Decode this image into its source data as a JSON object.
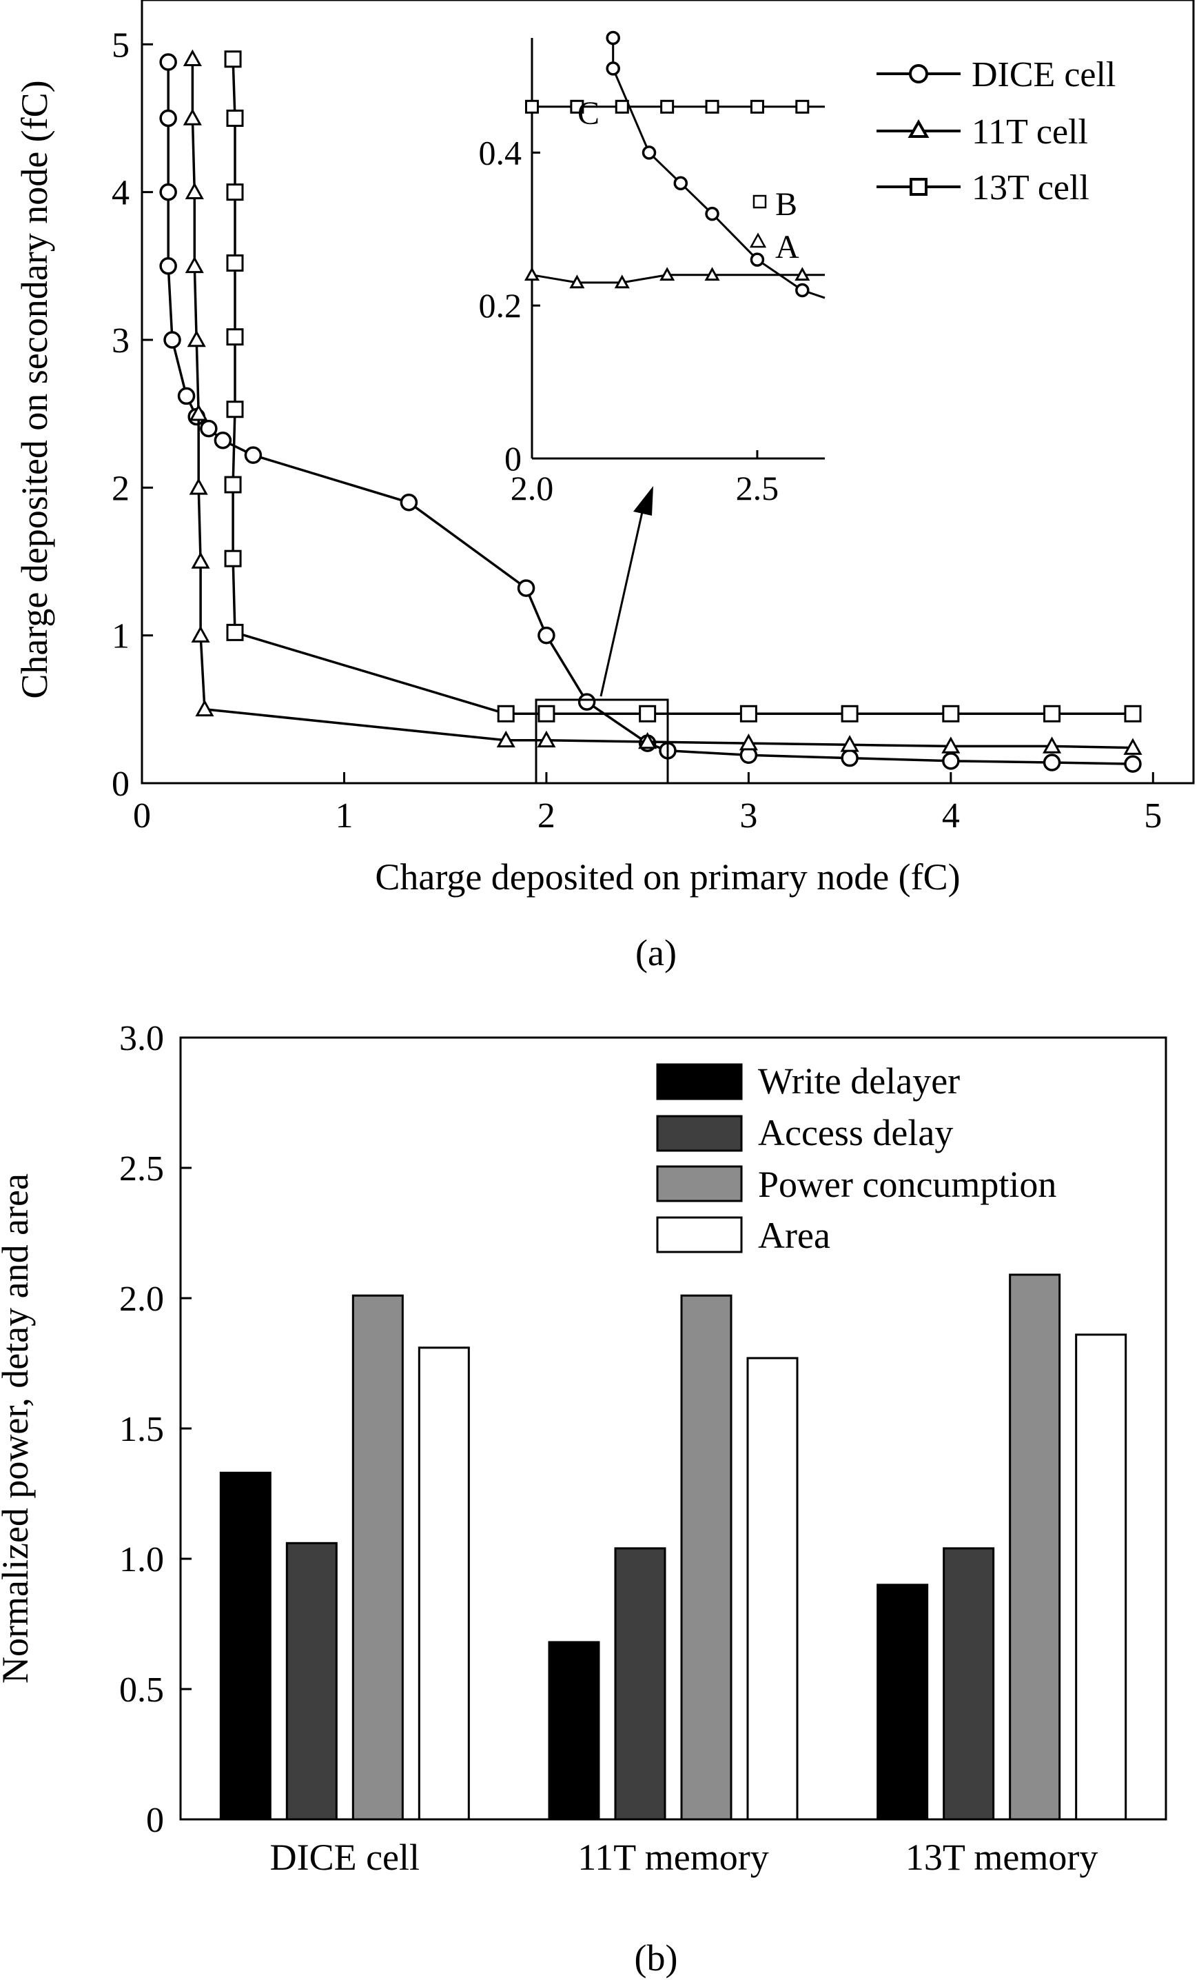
{
  "chart_data": [
    {
      "type": "line",
      "panel_label": "(a)",
      "xlabel": "Charge deposited on primary node (fC)",
      "ylabel": "Charge deposited on secondary node (fC)",
      "xlim": [
        0,
        5.2
      ],
      "ylim": [
        0,
        5.3
      ],
      "xticks": [
        "0",
        "1",
        "2",
        "3",
        "4",
        "5"
      ],
      "yticks": [
        "0",
        "1",
        "2",
        "3",
        "4",
        "5"
      ],
      "grid": false,
      "legend_position": "top-right",
      "legend": [
        "DICE cell",
        "11T cell",
        "13T cell"
      ],
      "series": [
        {
          "name": "DICE cell",
          "marker": "circle",
          "points": [
            [
              0.13,
              4.88
            ],
            [
              0.13,
              4.5
            ],
            [
              0.13,
              4.0
            ],
            [
              0.13,
              3.5
            ],
            [
              0.15,
              3.0
            ],
            [
              0.22,
              2.62
            ],
            [
              0.27,
              2.48
            ],
            [
              0.33,
              2.4
            ],
            [
              0.4,
              2.32
            ],
            [
              0.55,
              2.22
            ],
            [
              1.32,
              1.9
            ],
            [
              1.9,
              1.32
            ],
            [
              2.0,
              1.0
            ],
            [
              2.2,
              0.55
            ],
            [
              2.5,
              0.27
            ],
            [
              2.6,
              0.22
            ],
            [
              3.0,
              0.19
            ],
            [
              3.5,
              0.17
            ],
            [
              4.0,
              0.15
            ],
            [
              4.5,
              0.14
            ],
            [
              4.9,
              0.13
            ]
          ]
        },
        {
          "name": "11T cell",
          "marker": "triangle",
          "points": [
            [
              0.25,
              4.9
            ],
            [
              0.25,
              4.5
            ],
            [
              0.26,
              4.0
            ],
            [
              0.26,
              3.5
            ],
            [
              0.27,
              3.0
            ],
            [
              0.28,
              2.5
            ],
            [
              0.28,
              2.0
            ],
            [
              0.29,
              1.5
            ],
            [
              0.29,
              1.0
            ],
            [
              0.31,
              0.5
            ],
            [
              1.8,
              0.29
            ],
            [
              2.0,
              0.29
            ],
            [
              2.5,
              0.28
            ],
            [
              3.0,
              0.27
            ],
            [
              3.5,
              0.26
            ],
            [
              4.0,
              0.25
            ],
            [
              4.5,
              0.25
            ],
            [
              4.9,
              0.24
            ]
          ]
        },
        {
          "name": "13T cell",
          "marker": "square",
          "points": [
            [
              0.45,
              4.9
            ],
            [
              0.46,
              4.5
            ],
            [
              0.46,
              4.0
            ],
            [
              0.46,
              3.52
            ],
            [
              0.46,
              3.02
            ],
            [
              0.46,
              2.53
            ],
            [
              0.45,
              2.02
            ],
            [
              0.45,
              1.52
            ],
            [
              0.46,
              1.02
            ],
            [
              1.8,
              0.47
            ],
            [
              2.0,
              0.47
            ],
            [
              2.5,
              0.47
            ],
            [
              3.0,
              0.47
            ],
            [
              3.5,
              0.47
            ],
            [
              4.0,
              0.47
            ],
            [
              4.5,
              0.47
            ],
            [
              4.9,
              0.47
            ]
          ]
        }
      ],
      "inset": {
        "xlim": [
          2.0,
          2.65
        ],
        "ylim": [
          0,
          0.55
        ],
        "xticks": [
          "2.0",
          "2.5"
        ],
        "yticks": [
          "0",
          "0.2",
          "0.4"
        ],
        "annotations": [
          "C",
          "B",
          "A"
        ],
        "series": [
          {
            "name": "DICE cell",
            "marker": "circle",
            "points": [
              [
                2.18,
                0.55
              ],
              [
                2.18,
                0.51
              ],
              [
                2.26,
                0.4
              ],
              [
                2.33,
                0.36
              ],
              [
                2.4,
                0.32
              ],
              [
                2.5,
                0.26
              ],
              [
                2.6,
                0.22
              ]
            ]
          },
          {
            "name": "11T cell",
            "marker": "triangle",
            "points": [
              [
                2.0,
                0.24
              ],
              [
                2.1,
                0.23
              ],
              [
                2.2,
                0.23
              ],
              [
                2.3,
                0.24
              ],
              [
                2.4,
                0.24
              ],
              [
                2.6,
                0.24
              ]
            ]
          },
          {
            "name": "13T cell",
            "marker": "square",
            "points": [
              [
                2.0,
                0.46
              ],
              [
                2.1,
                0.46
              ],
              [
                2.2,
                0.46
              ],
              [
                2.3,
                0.46
              ],
              [
                2.4,
                0.46
              ],
              [
                2.5,
                0.46
              ],
              [
                2.6,
                0.46
              ]
            ]
          }
        ]
      }
    },
    {
      "type": "bar",
      "panel_label": "(b)",
      "ylabel": "Normalized power, detay and area",
      "xlabel": "",
      "ylim": [
        0,
        3.0
      ],
      "yticks": [
        "0",
        "0.5",
        "1.0",
        "1.5",
        "2.0",
        "2.5",
        "3.0"
      ],
      "grid": false,
      "legend_position": "top-right",
      "categories": [
        "DICE cell",
        "11T memory",
        "13T memory"
      ],
      "series": [
        {
          "name": "Write delayer",
          "color": "#000000",
          "values": [
            1.33,
            0.68,
            0.9
          ]
        },
        {
          "name": "Access delay",
          "color": "#3f3f3f",
          "values": [
            1.06,
            1.04,
            1.04
          ]
        },
        {
          "name": "Power concumption",
          "color": "#8c8c8c",
          "values": [
            2.01,
            2.01,
            2.09
          ]
        },
        {
          "name": "Area",
          "color": "#ffffff",
          "values": [
            1.81,
            1.77,
            1.86
          ]
        }
      ]
    }
  ]
}
